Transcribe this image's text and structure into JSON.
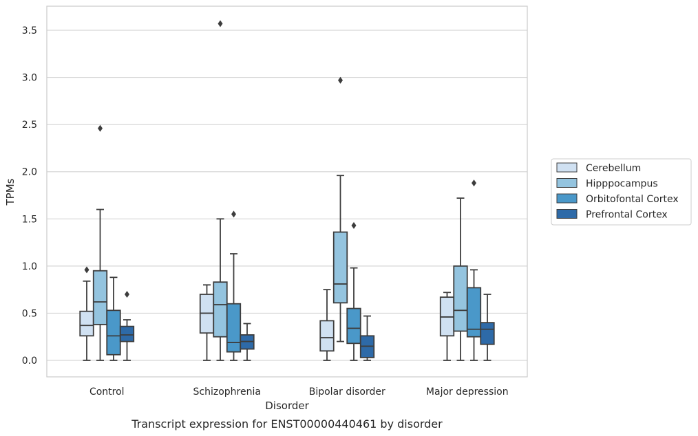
{
  "chart_data": {
    "type": "box",
    "title": "Transcript expression for ENST00000440461 by disorder",
    "xlabel": "Disorder",
    "ylabel": "TPMs",
    "ylim": [
      -0.17,
      3.75
    ],
    "yticks": [
      "0.0",
      "0.5",
      "1.0",
      "1.5",
      "2.0",
      "2.5",
      "3.0",
      "3.5"
    ],
    "grid": true,
    "legend_position": "right",
    "categories": [
      "Control",
      "Schizophrenia",
      "Bipolar disorder",
      "Major depression"
    ],
    "series": [
      {
        "name": "Cerebellum",
        "color": "#d0e1f2",
        "boxes": [
          {
            "whisker_low": 0.0,
            "q1": 0.26,
            "median": 0.37,
            "q3": 0.52,
            "whisker_high": 0.84,
            "outliers": [
              0.96
            ]
          },
          {
            "whisker_low": 0.0,
            "q1": 0.29,
            "median": 0.5,
            "q3": 0.7,
            "whisker_high": 0.8,
            "outliers": []
          },
          {
            "whisker_low": 0.0,
            "q1": 0.1,
            "median": 0.24,
            "q3": 0.42,
            "whisker_high": 0.75,
            "outliers": []
          },
          {
            "whisker_low": 0.0,
            "q1": 0.26,
            "median": 0.46,
            "q3": 0.67,
            "whisker_high": 0.72,
            "outliers": []
          }
        ]
      },
      {
        "name": "Hipppocampus",
        "color": "#94c4df",
        "boxes": [
          {
            "whisker_low": 0.0,
            "q1": 0.38,
            "median": 0.62,
            "q3": 0.95,
            "whisker_high": 1.6,
            "outliers": [
              2.46
            ]
          },
          {
            "whisker_low": 0.0,
            "q1": 0.25,
            "median": 0.59,
            "q3": 0.83,
            "whisker_high": 1.5,
            "outliers": [
              3.57
            ]
          },
          {
            "whisker_low": 0.2,
            "q1": 0.61,
            "median": 0.81,
            "q3": 1.36,
            "whisker_high": 1.96,
            "outliers": [
              2.97
            ]
          },
          {
            "whisker_low": 0.0,
            "q1": 0.31,
            "median": 0.53,
            "q3": 1.0,
            "whisker_high": 1.72,
            "outliers": []
          }
        ]
      },
      {
        "name": "Orbitofontal Cortex",
        "color": "#4a98c9",
        "boxes": [
          {
            "whisker_low": 0.0,
            "q1": 0.06,
            "median": 0.26,
            "q3": 0.53,
            "whisker_high": 0.88,
            "outliers": []
          },
          {
            "whisker_low": 0.0,
            "q1": 0.09,
            "median": 0.19,
            "q3": 0.6,
            "whisker_high": 1.13,
            "outliers": [
              1.55
            ]
          },
          {
            "whisker_low": 0.0,
            "q1": 0.18,
            "median": 0.34,
            "q3": 0.55,
            "whisker_high": 0.98,
            "outliers": [
              1.43
            ]
          },
          {
            "whisker_low": 0.0,
            "q1": 0.25,
            "median": 0.33,
            "q3": 0.77,
            "whisker_high": 0.96,
            "outliers": [
              1.88
            ]
          }
        ]
      },
      {
        "name": "Prefrontal Cortex",
        "color": "#2e6aa8",
        "boxes": [
          {
            "whisker_low": 0.0,
            "q1": 0.2,
            "median": 0.27,
            "q3": 0.36,
            "whisker_high": 0.43,
            "outliers": [
              0.7
            ]
          },
          {
            "whisker_low": 0.0,
            "q1": 0.12,
            "median": 0.2,
            "q3": 0.27,
            "whisker_high": 0.39,
            "outliers": []
          },
          {
            "whisker_low": 0.0,
            "q1": 0.03,
            "median": 0.15,
            "q3": 0.26,
            "whisker_high": 0.47,
            "outliers": []
          },
          {
            "whisker_low": 0.0,
            "q1": 0.17,
            "median": 0.33,
            "q3": 0.4,
            "whisker_high": 0.7,
            "outliers": []
          }
        ]
      }
    ]
  }
}
